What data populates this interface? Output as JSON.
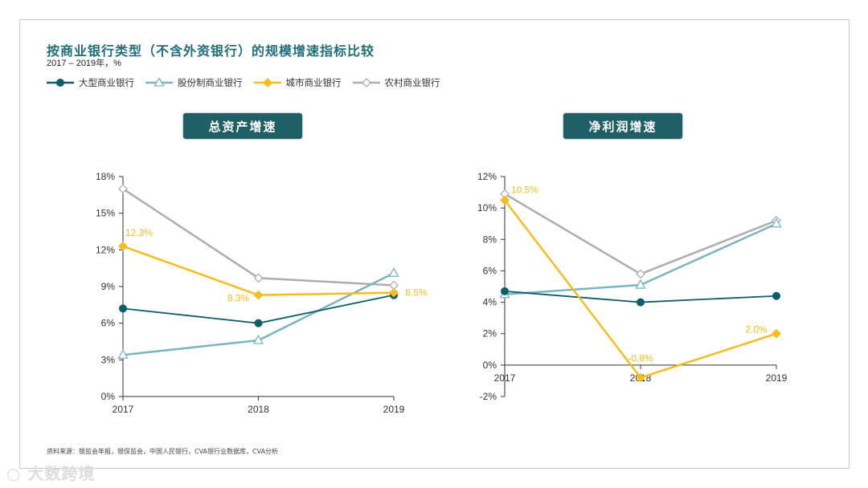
{
  "title": "按商业银行类型（不含外资银行）的规模增速指标比较",
  "subtitle": "2017 – 2019年，%",
  "legend": [
    {
      "name": "大型商业银行",
      "color": "#0e5e6a",
      "marker": "circle"
    },
    {
      "name": "股份制商业银行",
      "color": "#7bb5bd",
      "marker": "triangle"
    },
    {
      "name": "城市商业银行",
      "color": "#f5bd1f",
      "marker": "diamond"
    },
    {
      "name": "农村商业银行",
      "color": "#aeaeae",
      "marker": "diamond-open"
    }
  ],
  "panels": [
    "总资产增速",
    "净利润增速"
  ],
  "source": "资料来源：银监会年报，银保监会，中国人民银行，CVA银行业数据库，CVA分析",
  "watermark": "大数跨境",
  "chart_data": [
    {
      "type": "line",
      "title": "总资产增速",
      "categories": [
        "2017",
        "2018",
        "2019"
      ],
      "ylim": [
        0,
        18
      ],
      "yticks": [
        0,
        3,
        6,
        9,
        12,
        15,
        18
      ],
      "series": [
        {
          "name": "大型商业银行",
          "values": [
            7.2,
            6.0,
            8.3
          ]
        },
        {
          "name": "股份制商业银行",
          "values": [
            3.4,
            4.6,
            10.1
          ]
        },
        {
          "name": "城市商业银行",
          "values": [
            12.3,
            8.3,
            8.5
          ],
          "labels": [
            "12.3%",
            "8.3%",
            "8.5%"
          ]
        },
        {
          "name": "农村商业银行",
          "values": [
            17.0,
            9.7,
            9.1
          ]
        }
      ]
    },
    {
      "type": "line",
      "title": "净利润增速",
      "categories": [
        "2017",
        "2018",
        "2019"
      ],
      "ylim": [
        -2,
        12
      ],
      "yticks": [
        -2,
        0,
        2,
        4,
        6,
        8,
        10,
        12
      ],
      "series": [
        {
          "name": "大型商业银行",
          "values": [
            4.7,
            4.0,
            4.4
          ]
        },
        {
          "name": "股份制商业银行",
          "values": [
            4.5,
            5.1,
            9.0
          ]
        },
        {
          "name": "城市商业银行",
          "values": [
            10.5,
            -0.8,
            2.0
          ],
          "labels": [
            "10.5%",
            "-0.8%",
            "2.0%"
          ]
        },
        {
          "name": "农村商业银行",
          "values": [
            10.9,
            5.8,
            9.2
          ]
        }
      ]
    }
  ]
}
